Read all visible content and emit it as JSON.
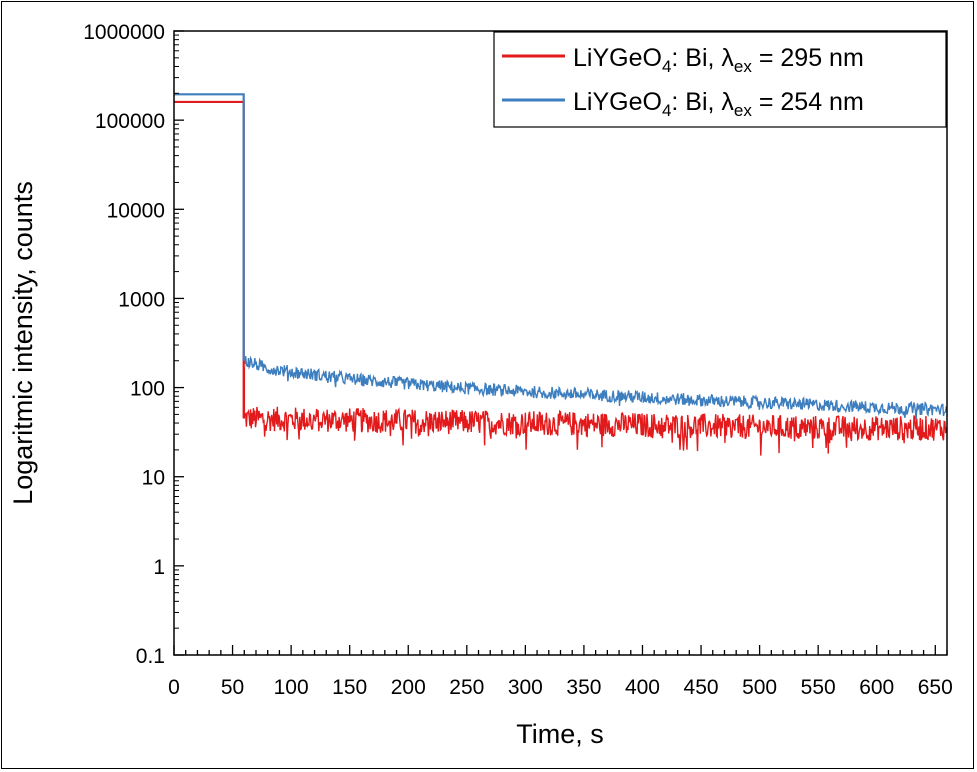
{
  "chart_data": {
    "type": "line",
    "title": "",
    "xlabel": "Time, s",
    "ylabel": "Logaritmic intensity, counts",
    "xlim": [
      0,
      660
    ],
    "ylim": [
      0.1,
      1000000
    ],
    "yscale": "log",
    "x_ticks": [
      "0",
      "50",
      "100",
      "150",
      "200",
      "250",
      "300",
      "350",
      "400",
      "450",
      "500",
      "550",
      "600",
      "650"
    ],
    "y_ticks": [
      "0.1",
      "1",
      "10",
      "100",
      "1000",
      "10000",
      "100000",
      "1000000"
    ],
    "grid": false,
    "legend_position": "top-right",
    "series": [
      {
        "name_parts": {
          "base": "LiYGeO",
          "sub": "4",
          "mid": ": Bi, λ",
          "sub2": "ex",
          "tail": " = 295 nm"
        },
        "color": "#e31a1c",
        "points": [
          [
            0,
            160000
          ],
          [
            59.5,
            160000
          ],
          [
            60,
            45
          ],
          [
            100,
            44
          ],
          [
            200,
            42
          ],
          [
            300,
            40
          ],
          [
            400,
            38
          ],
          [
            500,
            36
          ],
          [
            600,
            35
          ],
          [
            660,
            35
          ]
        ],
        "spike": [
          60,
          170
        ]
      },
      {
        "name_parts": {
          "base": "LiYGeO",
          "sub": "4",
          "mid": ": Bi, λ",
          "sub2": "ex",
          "tail": " = 254 nm"
        },
        "color": "#3d7ebf",
        "points": [
          [
            0,
            195000
          ],
          [
            59.5,
            195000
          ],
          [
            60,
            200
          ],
          [
            80,
            165
          ],
          [
            100,
            150
          ],
          [
            150,
            125
          ],
          [
            200,
            110
          ],
          [
            250,
            98
          ],
          [
            300,
            90
          ],
          [
            350,
            84
          ],
          [
            400,
            78
          ],
          [
            450,
            72
          ],
          [
            500,
            68
          ],
          [
            550,
            64
          ],
          [
            600,
            60
          ],
          [
            650,
            57
          ],
          [
            660,
            56
          ]
        ]
      }
    ]
  }
}
